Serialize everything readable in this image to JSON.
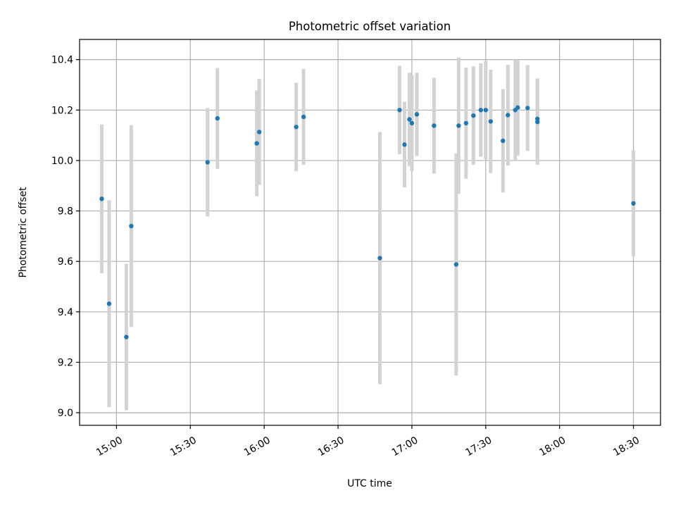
{
  "chart_data": {
    "type": "scatter",
    "title": "Photometric offset variation",
    "xlabel": "UTC time",
    "ylabel": "Photometric offset",
    "x_unit": "UTC time of day",
    "xlim": [
      "14:45",
      "18:41"
    ],
    "ylim": [
      8.95,
      10.48
    ],
    "x_ticks": [
      "15:00",
      "15:30",
      "16:00",
      "16:30",
      "17:00",
      "17:30",
      "18:00",
      "18:30"
    ],
    "y_ticks": [
      "9.0",
      "9.2",
      "9.4",
      "9.6",
      "9.8",
      "10.0",
      "10.2",
      "10.4"
    ],
    "grid": true,
    "marker_color": "#1f77b4",
    "errorbar_color": "#d3d3d3",
    "series": [
      {
        "points": [
          {
            "t": "14:54",
            "y": 9.848,
            "err": 0.295
          },
          {
            "t": "14:57",
            "y": 9.432,
            "err": 0.41
          },
          {
            "t": "15:04",
            "y": 9.3,
            "err": 0.29
          },
          {
            "t": "15:06",
            "y": 9.74,
            "err": 0.4
          },
          {
            "t": "15:37",
            "y": 9.993,
            "err": 0.215
          },
          {
            "t": "15:41",
            "y": 10.167,
            "err": 0.2
          },
          {
            "t": "15:57",
            "y": 10.068,
            "err": 0.21
          },
          {
            "t": "15:58",
            "y": 10.113,
            "err": 0.21
          },
          {
            "t": "16:13",
            "y": 10.133,
            "err": 0.175
          },
          {
            "t": "16:16",
            "y": 10.173,
            "err": 0.19
          },
          {
            "t": "16:47",
            "y": 9.613,
            "err": 0.5
          },
          {
            "t": "16:55",
            "y": 10.2,
            "err": 0.175
          },
          {
            "t": "16:57",
            "y": 10.063,
            "err": 0.17
          },
          {
            "t": "16:59",
            "y": 10.163,
            "err": 0.185
          },
          {
            "t": "17:00",
            "y": 10.148,
            "err": 0.19
          },
          {
            "t": "17:02",
            "y": 10.183,
            "err": 0.165
          },
          {
            "t": "17:09",
            "y": 10.138,
            "err": 0.19
          },
          {
            "t": "17:18",
            "y": 9.588,
            "err": 0.44
          },
          {
            "t": "17:19",
            "y": 10.138,
            "err": 0.27
          },
          {
            "t": "17:22",
            "y": 10.148,
            "err": 0.22
          },
          {
            "t": "17:25",
            "y": 10.178,
            "err": 0.195
          },
          {
            "t": "17:28",
            "y": 10.2,
            "err": 0.185
          },
          {
            "t": "17:30",
            "y": 10.2,
            "err": 0.195
          },
          {
            "t": "17:32",
            "y": 10.155,
            "err": 0.205
          },
          {
            "t": "17:37",
            "y": 10.078,
            "err": 0.205
          },
          {
            "t": "17:39",
            "y": 10.18,
            "err": 0.2
          },
          {
            "t": "17:42",
            "y": 10.2,
            "err": 0.2
          },
          {
            "t": "17:43",
            "y": 10.21,
            "err": 0.19
          },
          {
            "t": "17:47",
            "y": 10.208,
            "err": 0.17
          },
          {
            "t": "17:51",
            "y": 10.165,
            "err": 0.16
          },
          {
            "t": "17:51",
            "y": 10.153,
            "err": 0.17
          },
          {
            "t": "18:30",
            "y": 9.83,
            "err": 0.21
          }
        ]
      }
    ]
  }
}
